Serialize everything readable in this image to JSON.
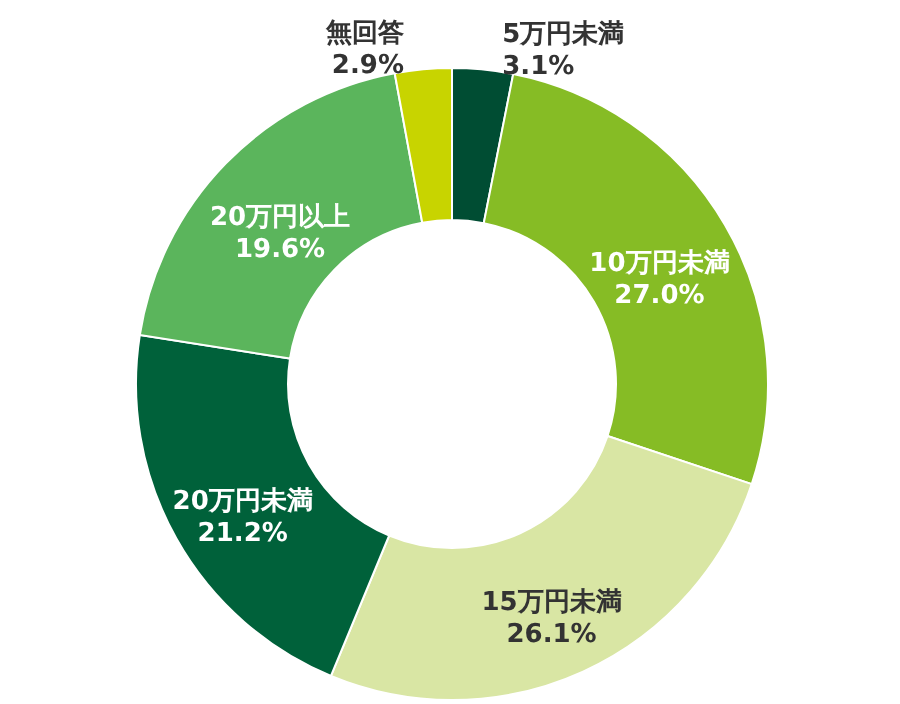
{
  "chart_data": {
    "type": "donut",
    "categories": [
      "5万円未満",
      "10万円未満",
      "15万円未満",
      "20万円未満",
      "20万円以上",
      "無回答"
    ],
    "values": [
      3.1,
      27.0,
      26.1,
      21.2,
      19.6,
      2.9
    ],
    "value_labels": [
      "3.1%",
      "27.0%",
      "26.1%",
      "21.2%",
      "19.6%",
      "2.9%"
    ],
    "colors": [
      "#004d33",
      "#86bc25",
      "#d9e6a4",
      "#00613a",
      "#5bb55c",
      "#c8d400"
    ]
  }
}
